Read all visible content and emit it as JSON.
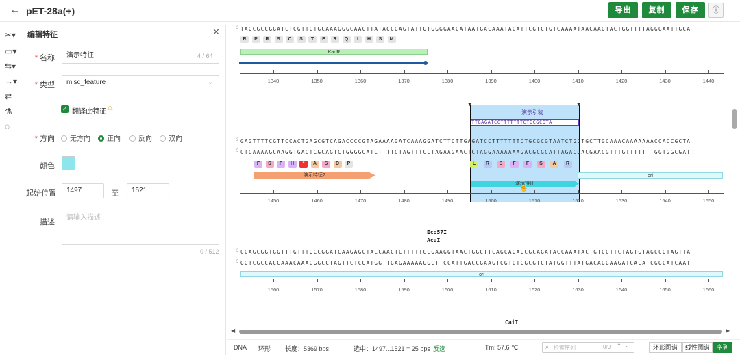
{
  "header": {
    "title": "pET-28a(+)",
    "export": "导出",
    "copy": "复制",
    "save": "保存"
  },
  "panel": {
    "title": "编辑特征",
    "name_label": "名称",
    "name_value": "演示特征",
    "name_count": "4 / 64",
    "type_label": "类型",
    "type_value": "misc_feature",
    "flip_label": "翻译此特征",
    "dir_label": "方向",
    "dir_none": "无方向",
    "dir_fwd": "正向",
    "dir_rev": "反向",
    "dir_both": "双向",
    "color_label": "颜色",
    "color": "#8de6ee",
    "start_label": "起始位置",
    "start": "1497",
    "to": "至",
    "end": "1521",
    "desc_label": "描述",
    "desc_placeholder": "请输入描述",
    "desc_count": "0 / 512"
  },
  "seq": {
    "r1_top": "TAGCGCCGGATCTCGTTCTGCAAAGGGCAACTTATACCGAGTATTGTGGGGAACATAATGACAAATACATTCGTCTGTCAAAATAACAAGTACTGGTTTTAGGGAATTGCA",
    "r1_aa": [
      "R",
      "P",
      "R",
      "S",
      "C",
      "S",
      "T",
      "E",
      "R",
      "Q",
      "I",
      "H",
      "S",
      "M"
    ],
    "r1_feat": "KanR",
    "r1_ticks": [
      "1340",
      "1350",
      "1360",
      "1370",
      "1380",
      "1390",
      "1400",
      "1410",
      "1420",
      "1430",
      "1440"
    ],
    "r2_primer": "演示引物",
    "r2_primer_seq": "TTGAGATCCTTTTTTTCTGCGCGTA",
    "r2_top": "GAGTTTTCGTTCCACTGAGCGTCAGACCCCGTAGAAAAGATCAAAGGATCTTCTTGAGATCCTTTTTTTCTGCGCGTAATCTGCTGCTTGCAAACAAAAAAACCACCGCTA",
    "r2_bot": "CTCAAAAGCAAGGTGACTCGCAGTCTGGGGCATCTTTTCTAGTTTCCTAGAAGAACTCTAGGAAAAAAAGACGCGCATTAGACGACGAACGTTTGTTTTTTTGGTGGCGAT",
    "r2_aa_left": [
      "F",
      "S",
      "F",
      "H",
      "*",
      "A",
      "S",
      "D",
      "P"
    ],
    "r2_aa_right": [
      "L",
      "R",
      "S",
      "F",
      "F",
      "S",
      "A",
      "R"
    ],
    "r2_feat1": "演示特征2",
    "r2_feat2": "演示特征",
    "r2_ori": "ori",
    "r2_ticks": [
      "1450",
      "1460",
      "1470",
      "1480",
      "1490",
      "1500",
      "1510",
      "1520",
      "1530",
      "1540",
      "1550"
    ],
    "enz1": "Eco57I",
    "enz2": "AcuI",
    "r3_top": "CCAGCGGTGGTTTGTTTGCCGGATCAAGAGCTACCAACTCTTTTTCCGAAGGTAACTGGCTTCAGCAGAGCGCAGATACCAAATACTGTCCTTCTAGTGTAGCCGTAGTTA",
    "r3_bot": "GGTCGCCACCAAACAAACGGCCTAGTTCTCGATGGTTGAGAAAAAGGCTTCCATTGACCGAAGTCGTCTCGCGTCTATGGTTTATGACAGGAAGATCACATCGGCATCAAT",
    "r3_ori": "ori",
    "r3_ticks": [
      "1560",
      "1570",
      "1580",
      "1590",
      "1600",
      "1610",
      "1620",
      "1630",
      "1640",
      "1650",
      "1660"
    ],
    "enz3": "CaiI"
  },
  "footer": {
    "dna": "DNA",
    "shape": "环形",
    "length": "长度：5369 bps",
    "selected": "选中：1497...1521 = 25 bps",
    "invert": "反选",
    "tm": "Tm: 57.6 ℃",
    "search_placeholder": "检索序列",
    "search_count": "0/0",
    "tab_circle": "环形图谱",
    "tab_linear": "线性图谱",
    "tab_seq": "序列"
  },
  "colors": {
    "accent": "#1f8a3b",
    "select": "#a8d8f8",
    "kanr": "#b8f0b8",
    "feat2": "#f4a070",
    "ori": "#e0f8fb"
  }
}
